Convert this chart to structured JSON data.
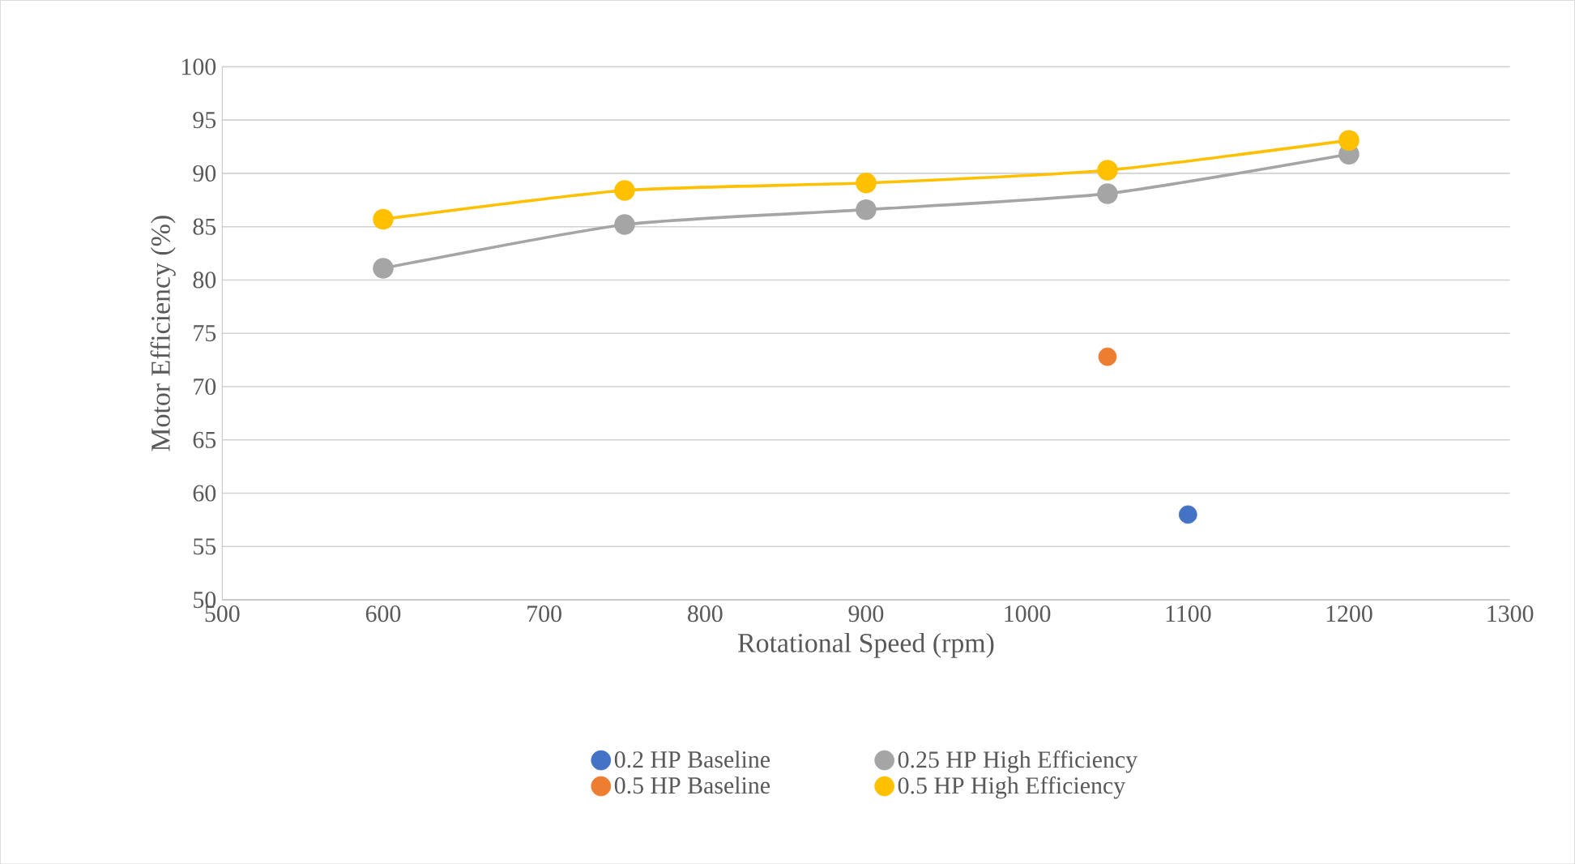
{
  "chart_data": {
    "type": "line",
    "xlabel": "Rotational Speed (rpm)",
    "ylabel": "Motor Efficiency (%)",
    "xlim": [
      500,
      1300
    ],
    "xticks": [
      500,
      600,
      700,
      800,
      900,
      1000,
      1100,
      1200,
      1300
    ],
    "ylim": [
      50,
      100
    ],
    "yticks": [
      50,
      55,
      60,
      65,
      70,
      75,
      80,
      85,
      90,
      95,
      100
    ],
    "grid": "y",
    "legend": "bottom",
    "marker": "circle",
    "series": [
      {
        "name": "0.2 HP Baseline",
        "type": "scatter",
        "color": "#4472c4",
        "x": [
          1100
        ],
        "values": [
          58.0
        ]
      },
      {
        "name": "0.25 HP High Efficiency",
        "color": "#a5a5a5",
        "x": [
          600,
          750,
          900,
          1050,
          1200
        ],
        "values": [
          81.1,
          85.2,
          86.6,
          88.1,
          91.8
        ]
      },
      {
        "name": "0.5 HP Baseline",
        "type": "scatter",
        "color": "#ed7d31",
        "x": [
          1050
        ],
        "values": [
          72.8
        ]
      },
      {
        "name": "0.5 HP High Efficiency",
        "color": "#ffc000",
        "x": [
          600,
          750,
          900,
          1050,
          1200
        ],
        "values": [
          85.7,
          88.4,
          89.1,
          90.3,
          93.1
        ]
      }
    ]
  }
}
